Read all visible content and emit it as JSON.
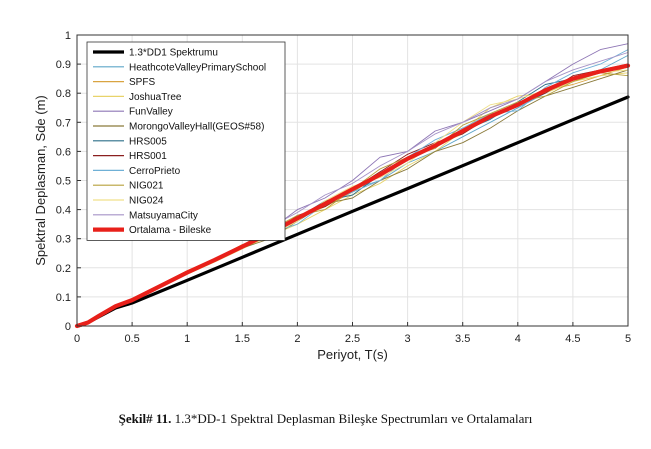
{
  "caption": {
    "label": "Şekil# 11.",
    "text": " 1.3*DD-1 Spektral Deplasman Bileşke Spectrumları ve Ortalamaları"
  },
  "chart_data": {
    "type": "line",
    "xlabel": "Periyot, T(s)",
    "ylabel": "Spektral Deplasman, Sde (m)",
    "xlim": [
      0,
      5
    ],
    "ylim": [
      0,
      1
    ],
    "xticks": [
      "0",
      "0.5",
      "1",
      "1.5",
      "2",
      "2.5",
      "3",
      "3.5",
      "4",
      "4.5",
      "5"
    ],
    "yticks": [
      "0",
      "0.1",
      "0.2",
      "0.3",
      "0.4",
      "0.5",
      "0.6",
      "0.7",
      "0.8",
      "0.9",
      "1"
    ],
    "grid": true,
    "legend_position": "top-left",
    "series": [
      {
        "name": "1.3*DD1 Spektrumu",
        "color": "#000000",
        "width": 3.2,
        "x": [
          0,
          0.05,
          0.1,
          0.2,
          0.35,
          0.5,
          1,
          1.5,
          2,
          2.5,
          3,
          3.5,
          4,
          4.5,
          5
        ],
        "y": [
          0,
          0.004,
          0.012,
          0.032,
          0.062,
          0.079,
          0.157,
          0.236,
          0.315,
          0.394,
          0.472,
          0.551,
          0.63,
          0.709,
          0.787
        ]
      },
      {
        "name": "HeathcoteValleyPrimarySchool",
        "color": "#5ea6c9",
        "width": 0.9,
        "x": [
          0,
          0.1,
          0.2,
          0.35,
          0.5,
          0.75,
          1,
          1.25,
          1.5,
          1.75,
          2,
          2.25,
          2.5,
          2.75,
          3,
          3.25,
          3.5,
          3.75,
          4,
          4.25,
          4.5,
          4.75,
          5
        ],
        "y": [
          0,
          0.012,
          0.035,
          0.068,
          0.088,
          0.135,
          0.18,
          0.225,
          0.275,
          0.32,
          0.36,
          0.42,
          0.47,
          0.5,
          0.56,
          0.6,
          0.65,
          0.7,
          0.75,
          0.8,
          0.85,
          0.88,
          0.93
        ]
      },
      {
        "name": "SPFS",
        "color": "#d9a441",
        "width": 0.9,
        "x": [
          0,
          0.1,
          0.2,
          0.35,
          0.5,
          0.75,
          1,
          1.25,
          1.5,
          1.75,
          2,
          2.25,
          2.5,
          2.75,
          3,
          3.25,
          3.5,
          3.75,
          4,
          4.25,
          4.5,
          4.75,
          5
        ],
        "y": [
          0,
          0.013,
          0.037,
          0.07,
          0.092,
          0.14,
          0.19,
          0.23,
          0.28,
          0.31,
          0.37,
          0.41,
          0.46,
          0.52,
          0.57,
          0.62,
          0.66,
          0.72,
          0.76,
          0.81,
          0.83,
          0.86,
          0.89
        ]
      },
      {
        "name": "JoshuaTree",
        "color": "#e8d36a",
        "width": 0.9,
        "x": [
          0,
          0.1,
          0.2,
          0.35,
          0.5,
          0.75,
          1,
          1.25,
          1.5,
          1.75,
          2,
          2.25,
          2.5,
          2.75,
          3,
          3.25,
          3.5,
          3.75,
          4,
          4.25,
          4.5,
          4.75,
          5
        ],
        "y": [
          0,
          0.011,
          0.034,
          0.066,
          0.086,
          0.132,
          0.178,
          0.22,
          0.265,
          0.31,
          0.35,
          0.4,
          0.45,
          0.49,
          0.55,
          0.6,
          0.67,
          0.75,
          0.79,
          0.8,
          0.84,
          0.86,
          0.87
        ]
      },
      {
        "name": "FunValley",
        "color": "#8e76b5",
        "width": 0.9,
        "x": [
          0,
          0.1,
          0.2,
          0.35,
          0.5,
          0.75,
          1,
          1.25,
          1.5,
          1.75,
          2,
          2.25,
          2.5,
          2.75,
          3,
          3.25,
          3.5,
          3.75,
          4,
          4.25,
          4.5,
          4.75,
          5
        ],
        "y": [
          0,
          0.012,
          0.036,
          0.069,
          0.09,
          0.138,
          0.185,
          0.228,
          0.27,
          0.33,
          0.4,
          0.44,
          0.5,
          0.58,
          0.6,
          0.67,
          0.7,
          0.74,
          0.78,
          0.84,
          0.9,
          0.95,
          0.97
        ]
      },
      {
        "name": "MorongoValleyHall(GEOS#58)",
        "color": "#8a7a3a",
        "width": 0.9,
        "x": [
          0,
          0.1,
          0.2,
          0.35,
          0.5,
          0.75,
          1,
          1.25,
          1.5,
          1.75,
          2,
          2.25,
          2.5,
          2.75,
          3,
          3.25,
          3.5,
          3.75,
          4,
          4.25,
          4.5,
          4.75,
          5
        ],
        "y": [
          0,
          0.012,
          0.035,
          0.067,
          0.088,
          0.136,
          0.182,
          0.222,
          0.268,
          0.3,
          0.36,
          0.42,
          0.44,
          0.5,
          0.54,
          0.6,
          0.63,
          0.68,
          0.74,
          0.79,
          0.82,
          0.85,
          0.88
        ]
      },
      {
        "name": "HRS005",
        "color": "#2c6f88",
        "width": 0.9,
        "x": [
          0,
          0.1,
          0.2,
          0.35,
          0.5,
          0.75,
          1,
          1.25,
          1.5,
          1.75,
          2,
          2.25,
          2.5,
          2.75,
          3,
          3.25,
          3.5,
          3.75,
          4,
          4.25,
          4.5,
          4.75,
          5
        ],
        "y": [
          0,
          0.012,
          0.036,
          0.068,
          0.089,
          0.134,
          0.184,
          0.226,
          0.272,
          0.32,
          0.37,
          0.43,
          0.45,
          0.52,
          0.57,
          0.62,
          0.67,
          0.71,
          0.77,
          0.83,
          0.85,
          0.88,
          0.9
        ]
      },
      {
        "name": "HRS001",
        "color": "#8b2020",
        "width": 0.9,
        "x": [
          0,
          0.1,
          0.2,
          0.35,
          0.5,
          0.75,
          1,
          1.25,
          1.5,
          1.75,
          2,
          2.25,
          2.5,
          2.75,
          3,
          3.25,
          3.5,
          3.75,
          4,
          4.25,
          4.5,
          4.75,
          5
        ],
        "y": [
          0,
          0.012,
          0.036,
          0.068,
          0.09,
          0.137,
          0.186,
          0.23,
          0.276,
          0.31,
          0.38,
          0.41,
          0.47,
          0.53,
          0.59,
          0.63,
          0.66,
          0.72,
          0.76,
          0.8,
          0.86,
          0.88,
          0.89
        ]
      },
      {
        "name": "CerroPrieto",
        "color": "#6fb0d6",
        "width": 0.9,
        "x": [
          0,
          0.1,
          0.2,
          0.35,
          0.5,
          0.75,
          1,
          1.25,
          1.5,
          1.75,
          2,
          2.25,
          2.5,
          2.75,
          3,
          3.25,
          3.5,
          3.75,
          4,
          4.25,
          4.5,
          4.75,
          5
        ],
        "y": [
          0,
          0.011,
          0.035,
          0.067,
          0.087,
          0.133,
          0.18,
          0.224,
          0.27,
          0.32,
          0.35,
          0.42,
          0.46,
          0.5,
          0.58,
          0.64,
          0.68,
          0.73,
          0.74,
          0.82,
          0.87,
          0.9,
          0.95
        ]
      },
      {
        "name": "NIG021",
        "color": "#b7a13c",
        "width": 0.9,
        "x": [
          0,
          0.1,
          0.2,
          0.35,
          0.5,
          0.75,
          1,
          1.25,
          1.5,
          1.75,
          2,
          2.25,
          2.5,
          2.75,
          3,
          3.25,
          3.5,
          3.75,
          4,
          4.25,
          4.5,
          4.75,
          5
        ],
        "y": [
          0,
          0.012,
          0.036,
          0.069,
          0.091,
          0.139,
          0.188,
          0.232,
          0.278,
          0.33,
          0.38,
          0.4,
          0.47,
          0.54,
          0.58,
          0.61,
          0.69,
          0.73,
          0.77,
          0.79,
          0.84,
          0.87,
          0.86
        ]
      },
      {
        "name": "NIG024",
        "color": "#f0e08a",
        "width": 0.9,
        "x": [
          0,
          0.1,
          0.2,
          0.35,
          0.5,
          0.75,
          1,
          1.25,
          1.5,
          1.75,
          2,
          2.25,
          2.5,
          2.75,
          3,
          3.25,
          3.5,
          3.75,
          4,
          4.25,
          4.5,
          4.75,
          5
        ],
        "y": [
          0,
          0.012,
          0.035,
          0.068,
          0.089,
          0.136,
          0.183,
          0.227,
          0.273,
          0.31,
          0.36,
          0.43,
          0.48,
          0.51,
          0.56,
          0.63,
          0.7,
          0.76,
          0.78,
          0.81,
          0.85,
          0.87,
          0.88
        ]
      },
      {
        "name": "MatsuyamaCity",
        "color": "#a593c7",
        "width": 0.9,
        "x": [
          0,
          0.1,
          0.2,
          0.35,
          0.5,
          0.75,
          1,
          1.25,
          1.5,
          1.75,
          2,
          2.25,
          2.5,
          2.75,
          3,
          3.25,
          3.5,
          3.75,
          4,
          4.25,
          4.5,
          4.75,
          5
        ],
        "y": [
          0,
          0.012,
          0.036,
          0.069,
          0.09,
          0.137,
          0.185,
          0.229,
          0.275,
          0.34,
          0.39,
          0.45,
          0.49,
          0.55,
          0.6,
          0.66,
          0.7,
          0.75,
          0.78,
          0.84,
          0.88,
          0.91,
          0.94
        ]
      },
      {
        "name": "Ortalama - Bileske",
        "color": "#e8201a",
        "width": 4.2,
        "x": [
          0,
          0.1,
          0.2,
          0.35,
          0.5,
          0.75,
          1,
          1.25,
          1.5,
          1.75,
          2,
          2.25,
          2.5,
          2.75,
          3,
          3.25,
          3.5,
          3.75,
          4,
          4.25,
          4.5,
          4.75,
          5
        ],
        "y": [
          0,
          0.012,
          0.035,
          0.068,
          0.089,
          0.136,
          0.184,
          0.227,
          0.273,
          0.32,
          0.37,
          0.42,
          0.47,
          0.52,
          0.575,
          0.62,
          0.67,
          0.72,
          0.76,
          0.81,
          0.85,
          0.875,
          0.895
        ]
      }
    ]
  }
}
